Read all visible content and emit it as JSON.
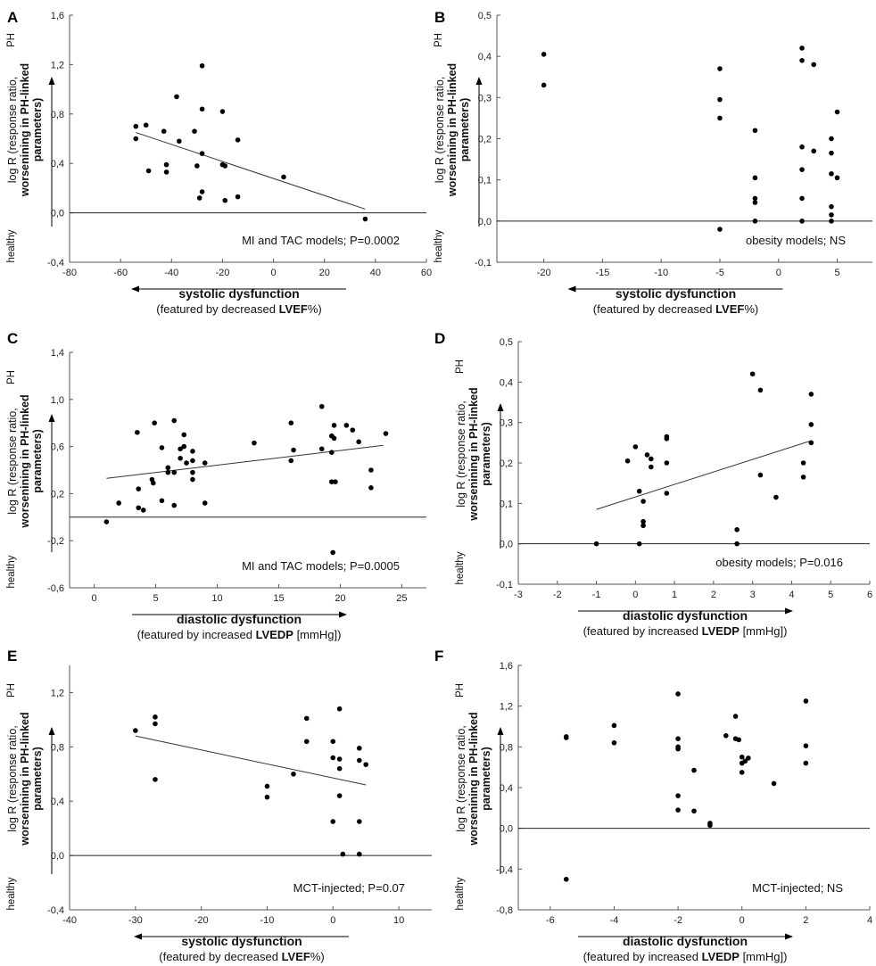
{
  "labels": {
    "ylabel_line1": "log R (response ratio,",
    "ylabel_line2": "worsenining in PH-linked",
    "ylabel_line3": "parameters)",
    "ylabel_line2_bold_part": "PH-linked",
    "top_label": "PH",
    "bottom_label": "healthy"
  },
  "chart_data": [
    {
      "panel": "A",
      "type": "scatter",
      "xlim": [
        -80,
        60
      ],
      "ylim": [
        -0.4,
        1.6
      ],
      "xticks": [
        -80,
        -60,
        -40,
        -20,
        0,
        20,
        40,
        60
      ],
      "xtick_labels": [
        "-80",
        "-60",
        "-40",
        "-20",
        "0",
        "20",
        "40",
        "60"
      ],
      "yticks": [
        -0.4,
        0.0,
        0.4,
        0.8,
        1.2,
        1.6
      ],
      "ytick_labels": [
        "-0,4",
        "0,0",
        "0,4",
        "0,8",
        "1,2",
        "1,6"
      ],
      "xlabel_bold": "systolic dysfunction",
      "xlabel_sub_pre": "(featured by decreased ",
      "xlabel_sub_bold": "LVEF",
      "xlabel_sub_post": "%)",
      "arrow_direction": "left",
      "annotation": "MI and TAC models; P=0.0002",
      "regression": [
        [
          -54,
          0.65
        ],
        [
          36,
          0.03
        ]
      ],
      "points": [
        [
          -54,
          0.7
        ],
        [
          -54,
          0.6
        ],
        [
          -50,
          0.71
        ],
        [
          -49,
          0.34
        ],
        [
          -43,
          0.66
        ],
        [
          -42,
          0.39
        ],
        [
          -42,
          0.33
        ],
        [
          -38,
          0.94
        ],
        [
          -37,
          0.58
        ],
        [
          -31,
          0.66
        ],
        [
          -30,
          0.38
        ],
        [
          -29,
          0.12
        ],
        [
          -28,
          1.19
        ],
        [
          -28,
          0.84
        ],
        [
          -28,
          0.48
        ],
        [
          -28,
          0.17
        ],
        [
          -20,
          0.82
        ],
        [
          -20,
          0.39
        ],
        [
          -19,
          0.38
        ],
        [
          -19,
          0.1
        ],
        [
          -14,
          0.59
        ],
        [
          -14,
          0.13
        ],
        [
          4,
          0.29
        ],
        [
          36,
          -0.05
        ]
      ]
    },
    {
      "panel": "B",
      "type": "scatter",
      "xlim": [
        -24,
        8
      ],
      "ylim": [
        -0.1,
        0.5
      ],
      "xticks": [
        -20,
        -15,
        -10,
        -5,
        0,
        5
      ],
      "xtick_labels": [
        "-20",
        "-15",
        "-10",
        "-5",
        "0",
        "5"
      ],
      "yticks": [
        -0.1,
        0.0,
        0.1,
        0.2,
        0.3,
        0.4,
        0.5
      ],
      "ytick_labels": [
        "-0,1",
        "0,0",
        "0,1",
        "0,2",
        "0,3",
        "0,4",
        "0,5"
      ],
      "xlabel_bold": "systolic dysfunction",
      "xlabel_sub_pre": "(featured by decreased ",
      "xlabel_sub_bold": "LVEF",
      "xlabel_sub_post": "%)",
      "arrow_direction": "left",
      "annotation": "obesity models; NS",
      "regression": null,
      "points": [
        [
          -20,
          0.405
        ],
        [
          -20,
          0.33
        ],
        [
          -5,
          0.37
        ],
        [
          -5,
          0.295
        ],
        [
          -5,
          0.25
        ],
        [
          -5,
          -0.02
        ],
        [
          -2,
          0.22
        ],
        [
          -2,
          0.105
        ],
        [
          -2,
          0.055
        ],
        [
          -2,
          0.045
        ],
        [
          -2,
          0.0
        ],
        [
          2,
          0.42
        ],
        [
          2,
          0.39
        ],
        [
          2,
          0.18
        ],
        [
          2,
          0.125
        ],
        [
          2,
          0.055
        ],
        [
          2,
          0.0
        ],
        [
          3,
          0.38
        ],
        [
          3,
          0.17
        ],
        [
          4.5,
          0.2
        ],
        [
          4.5,
          0.165
        ],
        [
          4.5,
          0.115
        ],
        [
          4.5,
          0.035
        ],
        [
          4.5,
          0.015
        ],
        [
          4.5,
          0.0
        ],
        [
          5,
          0.265
        ],
        [
          5,
          0.105
        ]
      ]
    },
    {
      "panel": "C",
      "type": "scatter",
      "xlim": [
        -2,
        27
      ],
      "ylim": [
        -0.6,
        1.4
      ],
      "xticks": [
        0,
        5,
        10,
        15,
        20,
        25
      ],
      "xtick_labels": [
        "0",
        "5",
        "10",
        "15",
        "20",
        "25"
      ],
      "yticks": [
        -0.6,
        -0.2,
        0.2,
        0.6,
        1.0,
        1.4
      ],
      "ytick_labels": [
        "-0,6",
        "-0,2",
        "0,2",
        "0,6",
        "1,0",
        "1,4"
      ],
      "xlabel_bold": "diastolic dysfunction",
      "xlabel_sub_pre": "(featured by increased ",
      "xlabel_sub_bold": "LVEDP",
      "xlabel_sub_post": " [mmHg])",
      "arrow_direction": "right",
      "annotation": "MI and TAC models; P=0.0005",
      "regression": [
        [
          1,
          0.33
        ],
        [
          23.5,
          0.61
        ]
      ],
      "points": [
        [
          1,
          -0.04
        ],
        [
          2,
          0.12
        ],
        [
          3.5,
          0.72
        ],
        [
          3.6,
          0.24
        ],
        [
          3.6,
          0.08
        ],
        [
          4,
          0.06
        ],
        [
          4.7,
          0.32
        ],
        [
          4.8,
          0.29
        ],
        [
          4.9,
          0.8
        ],
        [
          5.5,
          0.59
        ],
        [
          5.5,
          0.14
        ],
        [
          6,
          0.42
        ],
        [
          6,
          0.38
        ],
        [
          6.5,
          0.82
        ],
        [
          6.5,
          0.38
        ],
        [
          6.5,
          0.1
        ],
        [
          7,
          0.58
        ],
        [
          7,
          0.5
        ],
        [
          7.3,
          0.7
        ],
        [
          7.3,
          0.6
        ],
        [
          7.5,
          0.46
        ],
        [
          8,
          0.56
        ],
        [
          8,
          0.48
        ],
        [
          8,
          0.38
        ],
        [
          8,
          0.32
        ],
        [
          9,
          0.46
        ],
        [
          9,
          0.12
        ],
        [
          13,
          0.63
        ],
        [
          16,
          0.8
        ],
        [
          16,
          0.48
        ],
        [
          16.2,
          0.57
        ],
        [
          18.5,
          0.94
        ],
        [
          18.5,
          0.58
        ],
        [
          19.3,
          0.69
        ],
        [
          19.3,
          0.55
        ],
        [
          19.3,
          0.3
        ],
        [
          19.5,
          0.78
        ],
        [
          19.5,
          0.67
        ],
        [
          19.6,
          0.3
        ],
        [
          19.4,
          -0.3
        ],
        [
          20.5,
          0.78
        ],
        [
          21,
          0.74
        ],
        [
          21.5,
          0.64
        ],
        [
          22.5,
          0.4
        ],
        [
          22.5,
          0.25
        ],
        [
          23.7,
          0.71
        ]
      ]
    },
    {
      "panel": "D",
      "type": "scatter",
      "xlim": [
        -3,
        6
      ],
      "ylim": [
        -0.1,
        0.5
      ],
      "xticks": [
        -3,
        -2,
        -1,
        0,
        1,
        2,
        3,
        4,
        5,
        6
      ],
      "xtick_labels": [
        "-3",
        "-2",
        "-1",
        "0",
        "1",
        "2",
        "3",
        "4",
        "5",
        "6"
      ],
      "yticks": [
        -0.1,
        0.0,
        0.1,
        0.2,
        0.3,
        0.4,
        0.5
      ],
      "ytick_labels": [
        "-0,1",
        "0,0",
        "0,1",
        "0,2",
        "0,3",
        "0,4",
        "0,5"
      ],
      "xlabel_bold": "diastolic dysfunction",
      "xlabel_sub_pre": "(featured by increased ",
      "xlabel_sub_bold": "LVEDP",
      "xlabel_sub_post": " [mmHg])",
      "arrow_direction": "right",
      "annotation": "obesity models; P=0.016",
      "regression": [
        [
          -1,
          0.085
        ],
        [
          4.5,
          0.255
        ]
      ],
      "points": [
        [
          -1,
          0.0
        ],
        [
          -0.2,
          0.205
        ],
        [
          0,
          0.24
        ],
        [
          0.1,
          0.13
        ],
        [
          0.1,
          0.0
        ],
        [
          0.2,
          0.105
        ],
        [
          0.2,
          0.055
        ],
        [
          0.2,
          0.045
        ],
        [
          0.3,
          0.22
        ],
        [
          0.4,
          0.21
        ],
        [
          0.4,
          0.19
        ],
        [
          0.8,
          0.265
        ],
        [
          0.8,
          0.26
        ],
        [
          0.8,
          0.2
        ],
        [
          0.8,
          0.125
        ],
        [
          2.6,
          0.035
        ],
        [
          2.6,
          0.0
        ],
        [
          3,
          0.42
        ],
        [
          3.2,
          0.38
        ],
        [
          3.2,
          0.17
        ],
        [
          3.6,
          0.115
        ],
        [
          4.3,
          0.2
        ],
        [
          4.3,
          0.165
        ],
        [
          4.5,
          0.37
        ],
        [
          4.5,
          0.295
        ],
        [
          4.5,
          0.25
        ]
      ]
    },
    {
      "panel": "E",
      "type": "scatter",
      "xlim": [
        -40,
        15
      ],
      "ylim": [
        -0.4,
        1.4
      ],
      "xticks": [
        -40,
        -30,
        -20,
        -10,
        0,
        10
      ],
      "xtick_labels": [
        "-40",
        "-30",
        "-20",
        "-10",
        "0",
        "10"
      ],
      "yticks": [
        -0.4,
        0.0,
        0.4,
        0.8,
        1.2
      ],
      "ytick_labels": [
        "-0,4",
        "0,0",
        "0,4",
        "0,8",
        "1,2"
      ],
      "xlabel_bold": "systolic dysfunction",
      "xlabel_sub_pre": "(featured by decreased ",
      "xlabel_sub_bold": "LVEF",
      "xlabel_sub_post": "%)",
      "arrow_direction": "left",
      "annotation": "MCT-injected; P=0.07",
      "regression": [
        [
          -30,
          0.88
        ],
        [
          5,
          0.52
        ]
      ],
      "points": [
        [
          -30,
          0.92
        ],
        [
          -27,
          1.02
        ],
        [
          -27,
          0.97
        ],
        [
          -27,
          0.56
        ],
        [
          -10,
          0.51
        ],
        [
          -10,
          0.43
        ],
        [
          -6,
          0.6
        ],
        [
          -4,
          1.01
        ],
        [
          -4,
          0.84
        ],
        [
          0,
          0.84
        ],
        [
          0,
          0.72
        ],
        [
          0,
          0.25
        ],
        [
          1,
          1.08
        ],
        [
          1,
          0.71
        ],
        [
          1,
          0.64
        ],
        [
          1,
          0.44
        ],
        [
          1.5,
          0.01
        ],
        [
          4,
          0.79
        ],
        [
          4,
          0.7
        ],
        [
          4,
          0.25
        ],
        [
          4,
          0.01
        ],
        [
          5,
          0.67
        ]
      ]
    },
    {
      "panel": "F",
      "type": "scatter",
      "xlim": [
        -7,
        4
      ],
      "ylim": [
        -0.8,
        1.6
      ],
      "xticks": [
        -6,
        -4,
        -2,
        0,
        2,
        4
      ],
      "xtick_labels": [
        "-6",
        "-4",
        "-2",
        "0",
        "2",
        "4"
      ],
      "yticks": [
        -0.8,
        -0.4,
        0.0,
        0.4,
        0.8,
        1.2,
        1.6
      ],
      "ytick_labels": [
        "-0,8",
        "-0,4",
        "0,0",
        "0,4",
        "0,8",
        "1,2",
        "1,6"
      ],
      "xlabel_bold": "diastolic dysfunction",
      "xlabel_sub_pre": "(featured by increased ",
      "xlabel_sub_bold": "LVEDP",
      "xlabel_sub_post": " [mmHg])",
      "arrow_direction": "right",
      "annotation": "MCT-injected; NS",
      "regression": null,
      "points": [
        [
          -5.5,
          0.9
        ],
        [
          -5.5,
          0.89
        ],
        [
          -5.5,
          -0.5
        ],
        [
          -4,
          1.01
        ],
        [
          -4,
          0.84
        ],
        [
          -2,
          1.32
        ],
        [
          -2,
          0.88
        ],
        [
          -2,
          0.8
        ],
        [
          -2,
          0.78
        ],
        [
          -2,
          0.32
        ],
        [
          -2,
          0.18
        ],
        [
          -1.5,
          0.57
        ],
        [
          -1.5,
          0.17
        ],
        [
          -1,
          0.05
        ],
        [
          -1,
          0.03
        ],
        [
          -0.5,
          0.91
        ],
        [
          -0.2,
          1.1
        ],
        [
          -0.2,
          0.88
        ],
        [
          -0.1,
          0.87
        ],
        [
          0,
          0.7
        ],
        [
          0,
          0.64
        ],
        [
          0,
          0.55
        ],
        [
          0.1,
          0.66
        ],
        [
          0.2,
          0.69
        ],
        [
          1,
          0.44
        ],
        [
          2,
          1.25
        ],
        [
          2,
          0.81
        ],
        [
          2,
          0.64
        ]
      ]
    }
  ]
}
